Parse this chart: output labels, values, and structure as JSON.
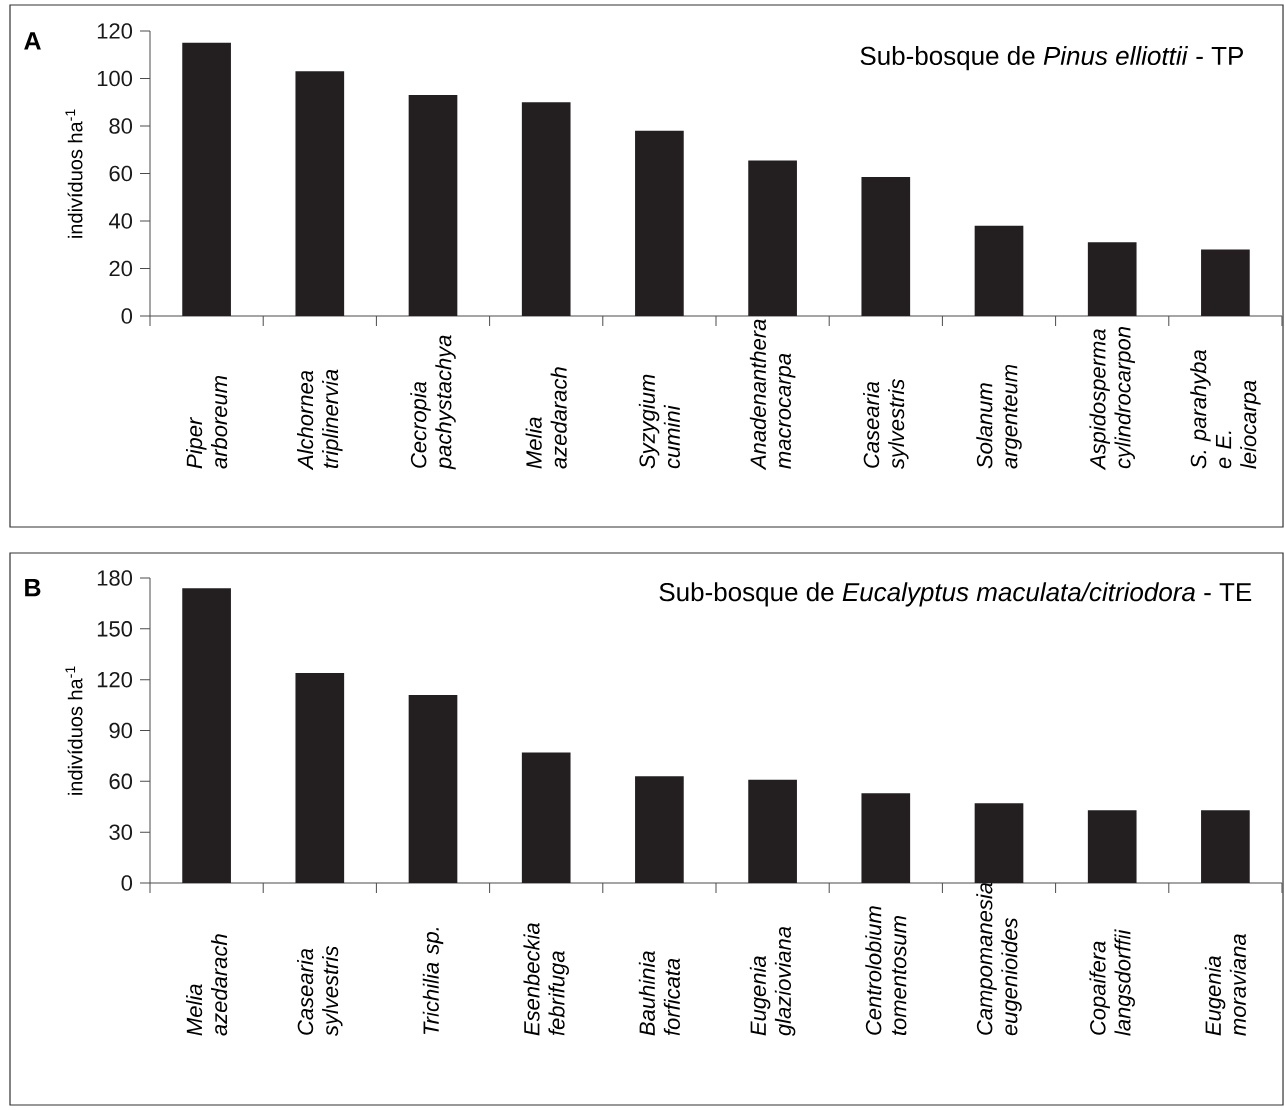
{
  "chart_data": [
    {
      "type": "bar",
      "title": "Sub-bosque de *Pinus elliottii* - TP",
      "ylabel": "indivíduos ha$^{-1}$",
      "annotations": [
        "A"
      ],
      "categories": [
        "Piper arboreum",
        "Alchornea triplinervia",
        "Cecropia pachystachya",
        "Melia azedarach",
        "Syzygium cumini",
        "Anadenanthera macrocarpa",
        "Casearia sylvestris",
        "Solanum argenteum",
        "Aspidosperma cylindrocarpon",
        "S. parahyba e E. leiocarpa"
      ],
      "values": [
        115,
        103,
        93,
        90,
        78,
        65.5,
        58.5,
        38,
        31,
        28
      ],
      "color": "#231f20",
      "ylim": [
        0,
        120
      ],
      "yticks": [
        0,
        20,
        40,
        60,
        80,
        100,
        120
      ]
    },
    {
      "type": "bar",
      "title": "Sub-bosque de *Eucalyptus maculata/citriodora* - TE",
      "ylabel": "indivíduos ha$^{-1}$",
      "annotations": [
        "B"
      ],
      "categories": [
        "Melia azedarach",
        "Casearia sylvestris",
        "Trichilia sp.",
        "Esenbeckia febrifuga",
        "Bauhinia forficata",
        "Eugenia glazioviana",
        "Centrolobium tomentosum",
        "Campomanesia eugenioides",
        "Copaifera langsdorffii",
        "Eugenia moraviana"
      ],
      "values": [
        174,
        124,
        111,
        77,
        63,
        61,
        53,
        47,
        43,
        43
      ],
      "color": "#231f20",
      "ylim": [
        0,
        180
      ],
      "yticks": [
        0,
        30,
        60,
        90,
        120,
        150,
        180
      ]
    }
  ]
}
